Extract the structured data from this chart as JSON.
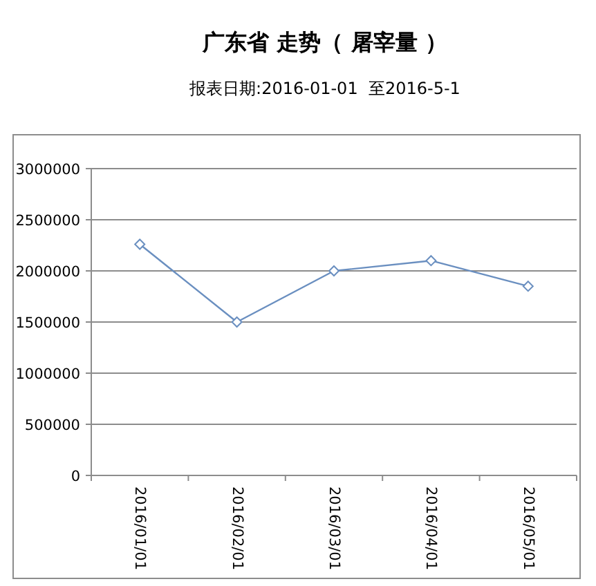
{
  "chart_data": {
    "type": "line",
    "title": "广东省 走势（ 屠宰量 ）",
    "subtitle": "报表日期:2016-01-01  至2016-5-1",
    "categories": [
      "2016/01/01",
      "2016/02/01",
      "2016/03/01",
      "2016/04/01",
      "2016/05/01"
    ],
    "series": [
      {
        "color": "#6a8fc0",
        "values": [
          2260000,
          1500000,
          2000000,
          2100000,
          1850000
        ]
      }
    ],
    "ylim": [
      0,
      3000000
    ],
    "yticks": [
      0,
      500000,
      1000000,
      1500000,
      2000000,
      2500000,
      3000000
    ],
    "grid": "y",
    "marker": "diamond",
    "line_style": "solid"
  }
}
